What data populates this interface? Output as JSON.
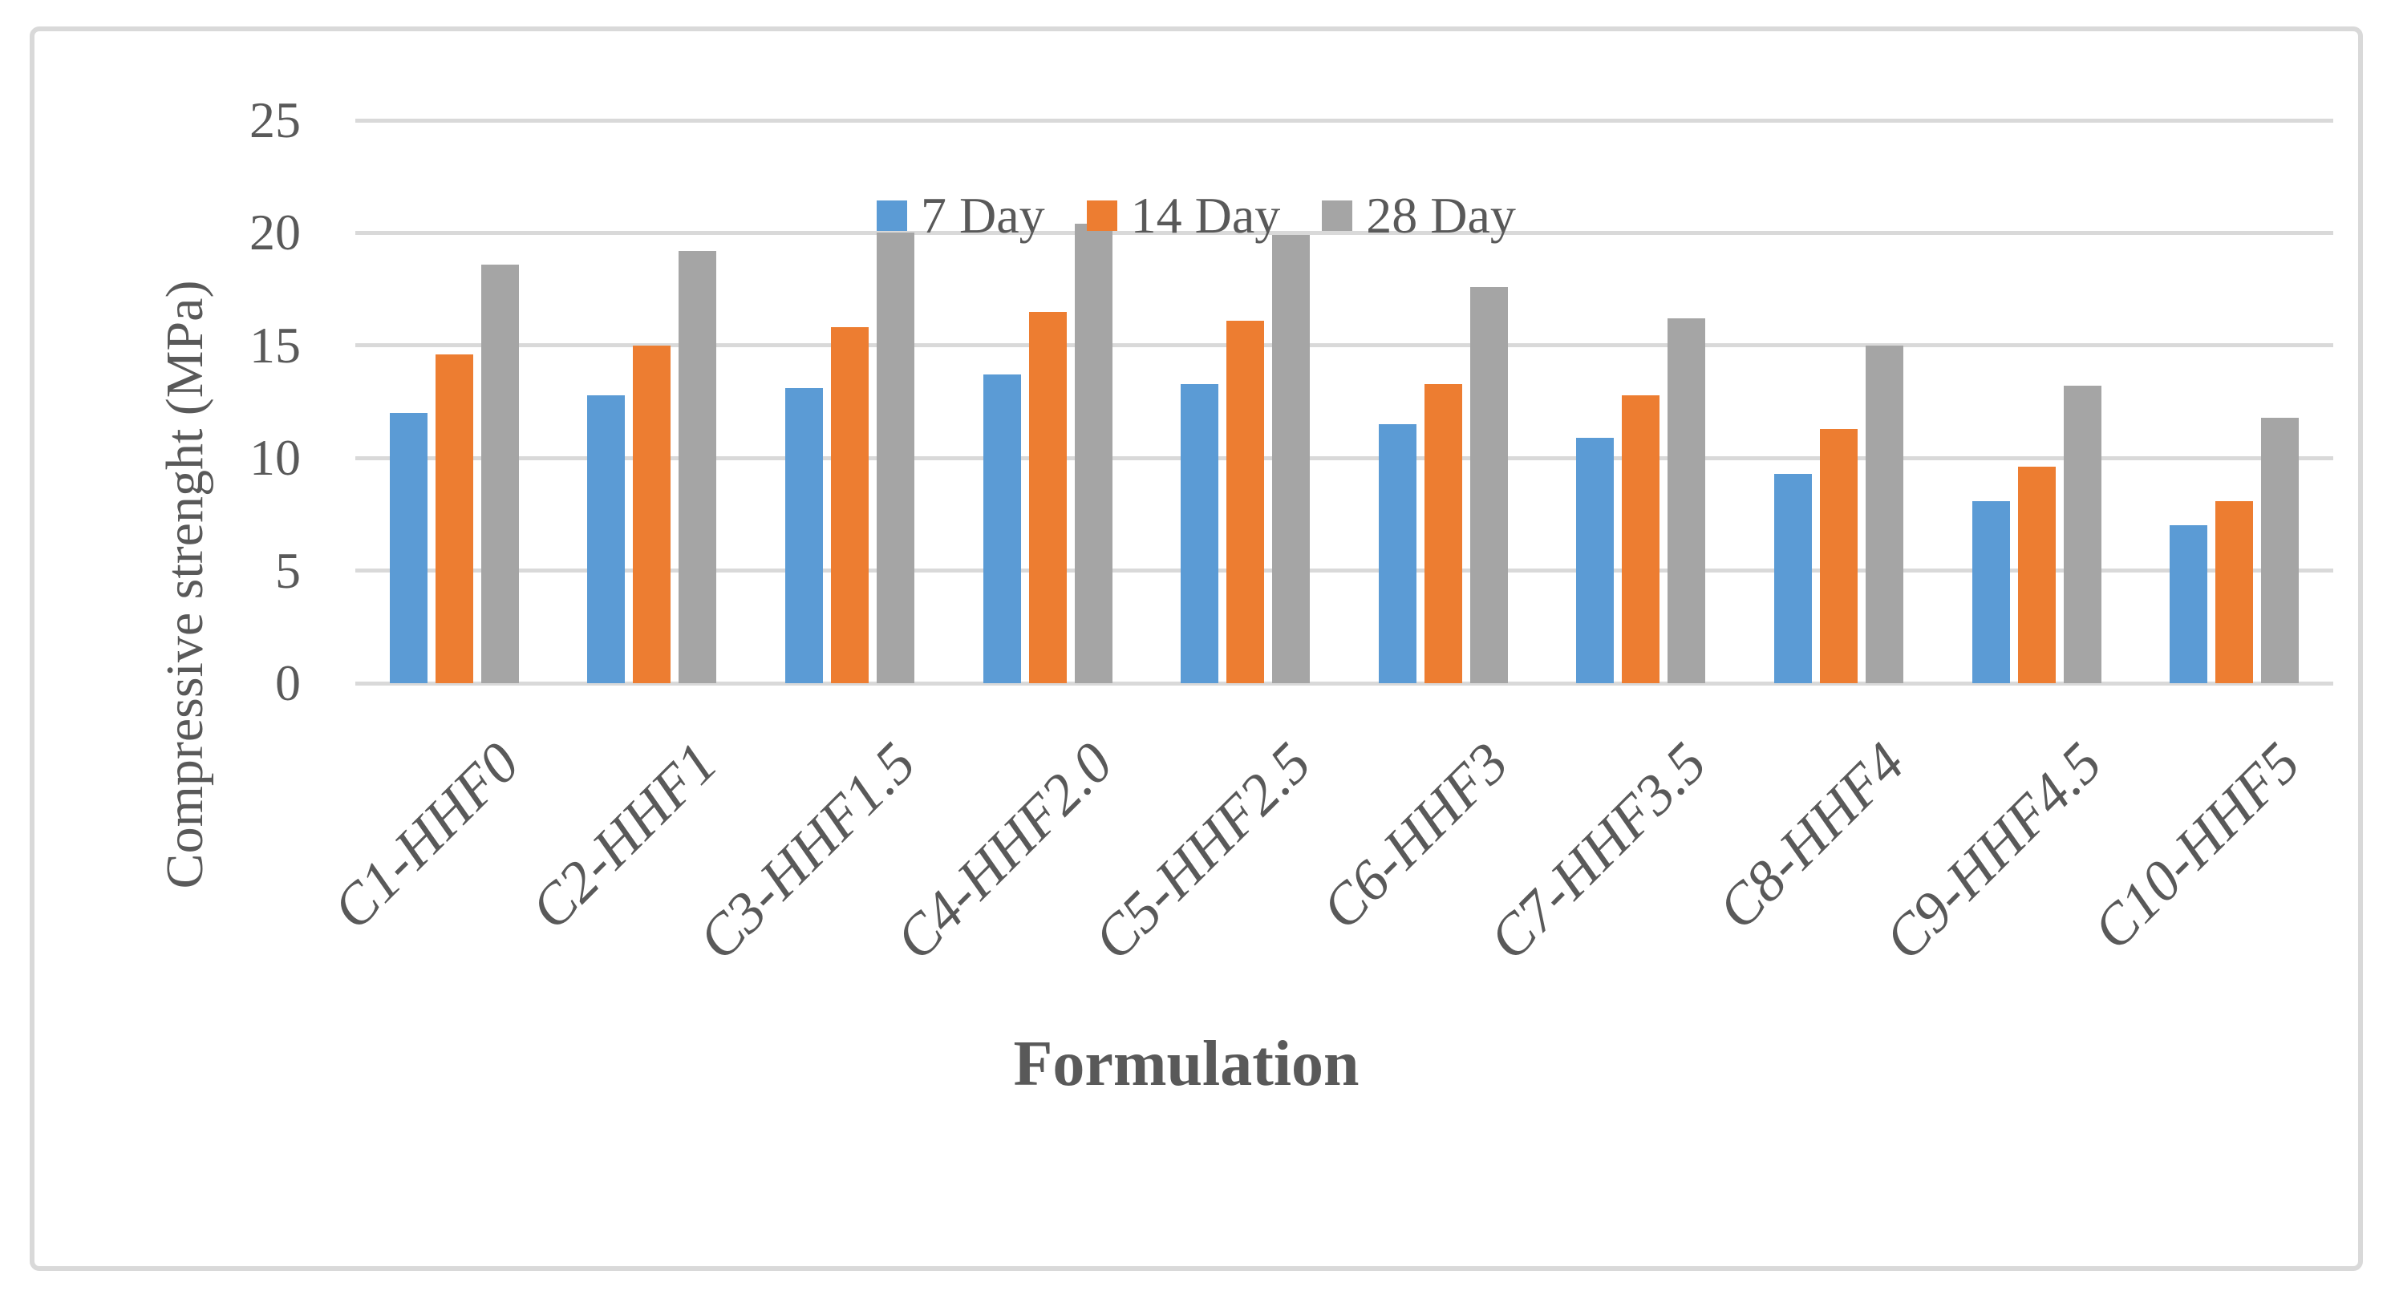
{
  "figure": {
    "background": "#FFFFFF",
    "frame_color": "#D9D9D9",
    "text_color": "#595959"
  },
  "chart_data": {
    "type": "bar",
    "title": "",
    "xlabel": "Formulation",
    "ylabel": "Compressive strenght (MPa)",
    "ylim": [
      0,
      25
    ],
    "ytick_step": 5,
    "yticks": [
      25,
      20,
      15,
      10,
      5,
      0
    ],
    "grid": true,
    "gridline_color": "#D9D9D9",
    "legend_position": "top-inside",
    "categories": [
      "C1-HHF0",
      "C2-HHF1",
      "C3-HHF1.5",
      "C4-HHF2.0",
      "C5-HHF2.5",
      "C6-HHF3",
      "C7-HHF3.5",
      "C8-HHF4",
      "C9-HHF4.5",
      "C10-HHF5"
    ],
    "series": [
      {
        "name": "7 Day",
        "color": "#5B9BD5",
        "values": [
          12.0,
          12.8,
          13.1,
          13.7,
          13.3,
          11.5,
          10.9,
          9.3,
          8.1,
          7.0
        ]
      },
      {
        "name": "14 Day",
        "color": "#ED7D31",
        "values": [
          14.6,
          15.0,
          15.8,
          16.5,
          16.1,
          13.3,
          12.8,
          11.3,
          9.6,
          8.1
        ]
      },
      {
        "name": "28 Day",
        "color": "#A5A5A5",
        "values": [
          18.6,
          19.2,
          20.0,
          20.4,
          19.9,
          17.6,
          16.2,
          15.0,
          13.2,
          11.8
        ]
      }
    ]
  }
}
